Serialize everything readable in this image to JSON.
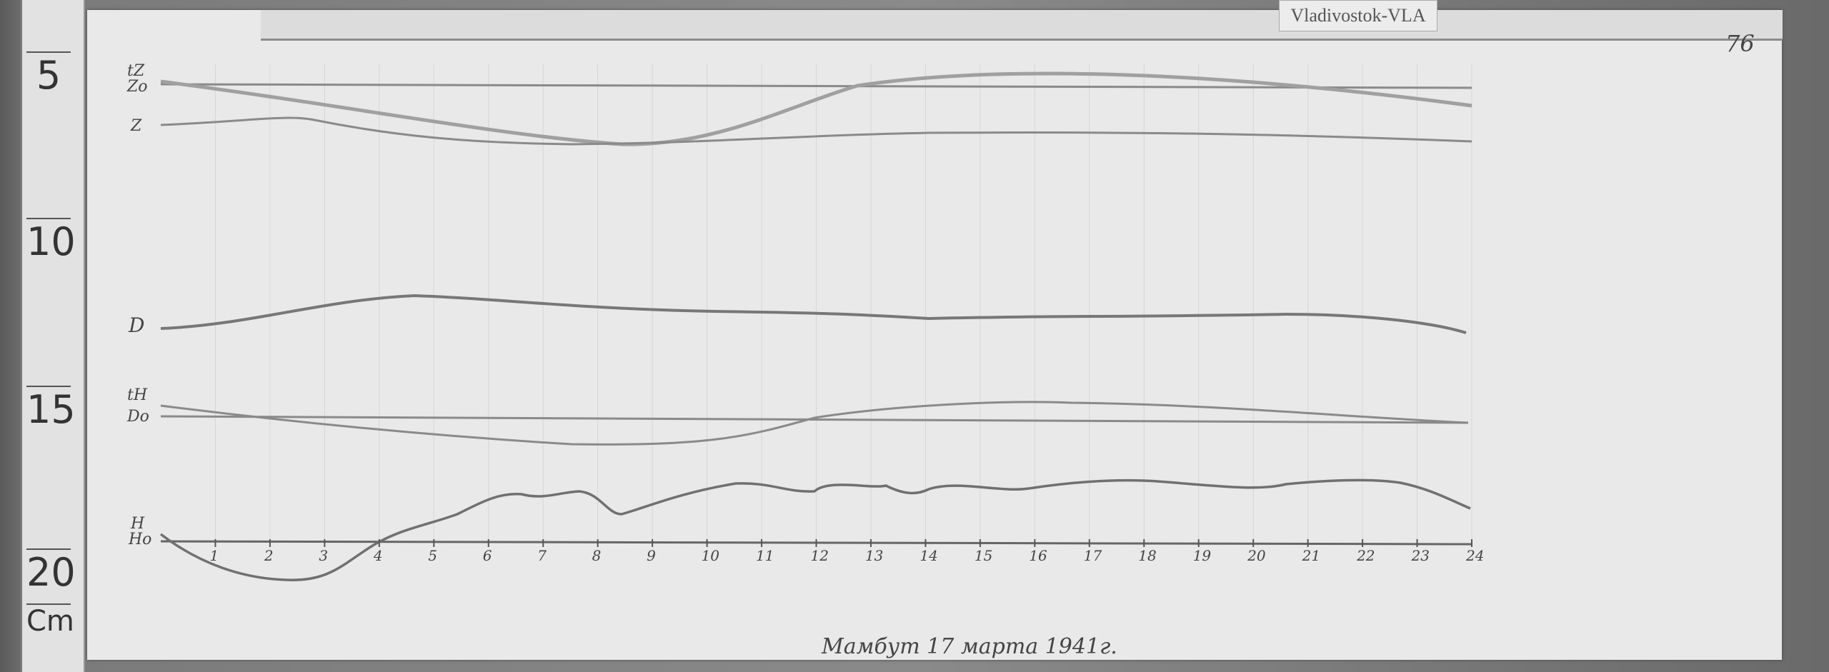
{
  "station_label": "Vladivostok-VLA",
  "sheet_number": "76",
  "caption": "Мамбут 17 марта 1941г.",
  "ruler": {
    "marks": [
      "5",
      "10",
      "15",
      "20"
    ],
    "unit": "Cm"
  },
  "trace_labels": {
    "tZ": "tZ",
    "Zo": "Zo",
    "Z": "Z",
    "D": "D",
    "tH": "tH",
    "Do": "Do",
    "H": "H",
    "Ho": "Ho"
  },
  "hours": [
    "1",
    "2",
    "3",
    "4",
    "5",
    "6",
    "7",
    "8",
    "9",
    "10",
    "11",
    "12",
    "13",
    "14",
    "15",
    "16",
    "17",
    "18",
    "19",
    "20",
    "21",
    "22",
    "23",
    "24"
  ]
}
